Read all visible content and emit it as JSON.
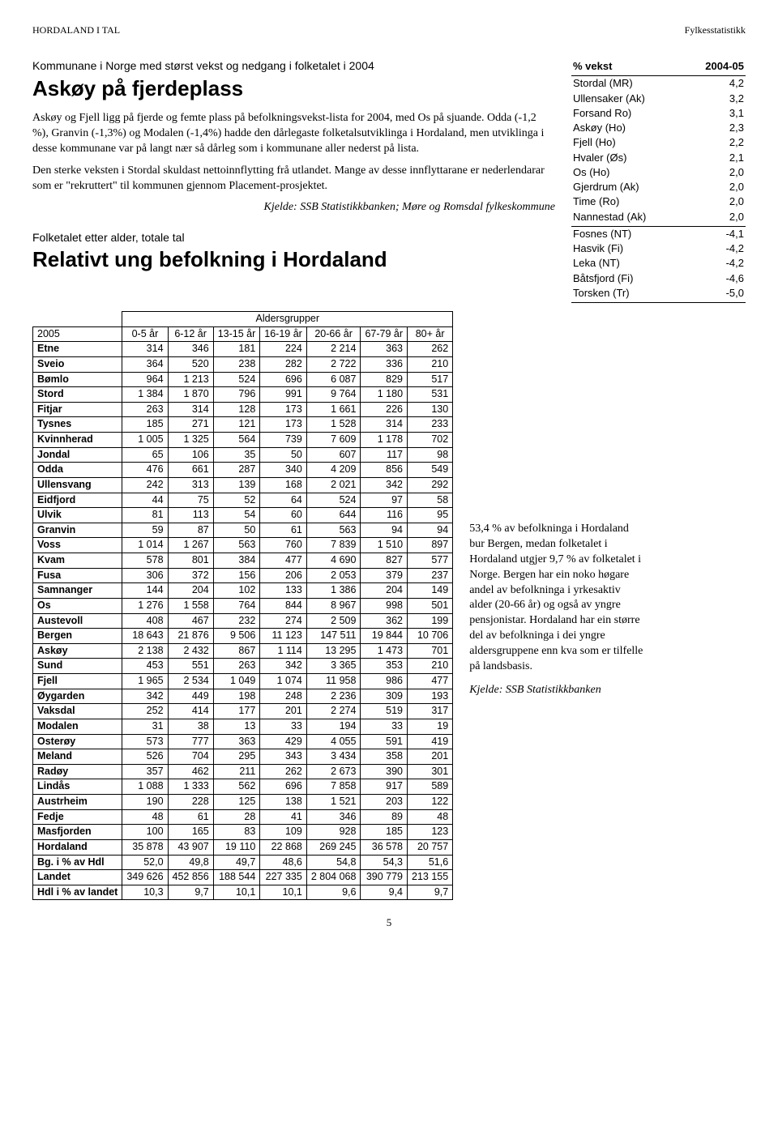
{
  "header": {
    "left": "HORDALAND I TAL",
    "right": "Fylkesstatistikk"
  },
  "article1": {
    "pretitle": "Kommunane i Norge med størst vekst og nedgang i folketalet i 2004",
    "title": "Askøy på fjerdeplass",
    "p1": "Askøy og Fjell ligg på fjerde og femte plass på befolkningsvekst-lista for 2004, med Os på sjuande. Odda (-1,2 %), Granvin (-1,3%) og Modalen (-1,4%) hadde den dårlegaste folketalsutviklinga i Hordaland, men utviklinga i desse kommunane var på langt nær så dårleg som i kommunane aller nederst på lista.",
    "p2": "Den sterke veksten i Stordal skuldast nettoinnflytting frå utlandet. Mange av desse innflyttarane er nederlendarar som er \"rekruttert\" til kommunen gjennom Placement-prosjektet.",
    "source": "Kjelde: SSB Statistikkbanken; Møre og Romsdal fylkeskommune"
  },
  "article2": {
    "pretitle": "Folketalet etter alder, totale tal",
    "title": "Relativt ung befolkning i Hordaland"
  },
  "growth": {
    "col1": "% vekst",
    "col2": "2004-05",
    "top": [
      [
        "Stordal (MR)",
        "4,2"
      ],
      [
        "Ullensaker (Ak)",
        "3,2"
      ],
      [
        "Forsand Ro)",
        "3,1"
      ],
      [
        "Askøy (Ho)",
        "2,3"
      ],
      [
        "Fjell (Ho)",
        "2,2"
      ],
      [
        "Hvaler (Øs)",
        "2,1"
      ],
      [
        "Os (Ho)",
        "2,0"
      ],
      [
        "Gjerdrum (Ak)",
        "2,0"
      ],
      [
        "Time (Ro)",
        "2,0"
      ],
      [
        "Nannestad (Ak)",
        "2,0"
      ]
    ],
    "bottom": [
      [
        "Fosnes (NT)",
        "-4,1"
      ],
      [
        "Hasvik (Fi)",
        "-4,2"
      ],
      [
        "Leka (NT)",
        "-4,2"
      ],
      [
        "Båtsfjord (Fi)",
        "-4,6"
      ],
      [
        "Torsken (Tr)",
        "-5,0"
      ]
    ]
  },
  "big": {
    "year": "2005",
    "super_header": "Aldersgrupper",
    "cols": [
      "0-5 år",
      "6-12 år",
      "13-15 år",
      "16-19 år",
      "20-66 år",
      "67-79 år",
      "80+ år"
    ],
    "rows": [
      [
        "Etne",
        "314",
        "346",
        "181",
        "224",
        "2 214",
        "363",
        "262"
      ],
      [
        "Sveio",
        "364",
        "520",
        "238",
        "282",
        "2 722",
        "336",
        "210"
      ],
      [
        "Bømlo",
        "964",
        "1 213",
        "524",
        "696",
        "6 087",
        "829",
        "517"
      ],
      [
        "Stord",
        "1 384",
        "1 870",
        "796",
        "991",
        "9 764",
        "1 180",
        "531"
      ],
      [
        "Fitjar",
        "263",
        "314",
        "128",
        "173",
        "1 661",
        "226",
        "130"
      ],
      [
        "Tysnes",
        "185",
        "271",
        "121",
        "173",
        "1 528",
        "314",
        "233"
      ],
      [
        "Kvinnherad",
        "1 005",
        "1 325",
        "564",
        "739",
        "7 609",
        "1 178",
        "702"
      ],
      [
        "Jondal",
        "65",
        "106",
        "35",
        "50",
        "607",
        "117",
        "98"
      ],
      [
        "Odda",
        "476",
        "661",
        "287",
        "340",
        "4 209",
        "856",
        "549"
      ],
      [
        "Ullensvang",
        "242",
        "313",
        "139",
        "168",
        "2 021",
        "342",
        "292"
      ],
      [
        "Eidfjord",
        "44",
        "75",
        "52",
        "64",
        "524",
        "97",
        "58"
      ],
      [
        "Ulvik",
        "81",
        "113",
        "54",
        "60",
        "644",
        "116",
        "95"
      ],
      [
        "Granvin",
        "59",
        "87",
        "50",
        "61",
        "563",
        "94",
        "94"
      ],
      [
        "Voss",
        "1 014",
        "1 267",
        "563",
        "760",
        "7 839",
        "1 510",
        "897"
      ],
      [
        "Kvam",
        "578",
        "801",
        "384",
        "477",
        "4 690",
        "827",
        "577"
      ],
      [
        "Fusa",
        "306",
        "372",
        "156",
        "206",
        "2 053",
        "379",
        "237"
      ],
      [
        "Samnanger",
        "144",
        "204",
        "102",
        "133",
        "1 386",
        "204",
        "149"
      ],
      [
        "Os",
        "1 276",
        "1 558",
        "764",
        "844",
        "8 967",
        "998",
        "501"
      ],
      [
        "Austevoll",
        "408",
        "467",
        "232",
        "274",
        "2 509",
        "362",
        "199"
      ],
      [
        "Bergen",
        "18 643",
        "21 876",
        "9 506",
        "11 123",
        "147 511",
        "19 844",
        "10 706"
      ],
      [
        "Askøy",
        "2 138",
        "2 432",
        "867",
        "1 114",
        "13 295",
        "1 473",
        "701"
      ],
      [
        "Sund",
        "453",
        "551",
        "263",
        "342",
        "3 365",
        "353",
        "210"
      ],
      [
        "Fjell",
        "1 965",
        "2 534",
        "1 049",
        "1 074",
        "11 958",
        "986",
        "477"
      ],
      [
        "Øygarden",
        "342",
        "449",
        "198",
        "248",
        "2 236",
        "309",
        "193"
      ],
      [
        "Vaksdal",
        "252",
        "414",
        "177",
        "201",
        "2 274",
        "519",
        "317"
      ],
      [
        "Modalen",
        "31",
        "38",
        "13",
        "33",
        "194",
        "33",
        "19"
      ],
      [
        "Osterøy",
        "573",
        "777",
        "363",
        "429",
        "4 055",
        "591",
        "419"
      ],
      [
        "Meland",
        "526",
        "704",
        "295",
        "343",
        "3 434",
        "358",
        "201"
      ],
      [
        "Radøy",
        "357",
        "462",
        "211",
        "262",
        "2 673",
        "390",
        "301"
      ],
      [
        "Lindås",
        "1 088",
        "1 333",
        "562",
        "696",
        "7 858",
        "917",
        "589"
      ],
      [
        "Austrheim",
        "190",
        "228",
        "125",
        "138",
        "1 521",
        "203",
        "122"
      ],
      [
        "Fedje",
        "48",
        "61",
        "28",
        "41",
        "346",
        "89",
        "48"
      ],
      [
        "Masfjorden",
        "100",
        "165",
        "83",
        "109",
        "928",
        "185",
        "123"
      ],
      [
        "Hordaland",
        "35 878",
        "43 907",
        "19 110",
        "22 868",
        "269 245",
        "36 578",
        "20 757"
      ],
      [
        "Bg. i % av Hdl",
        "52,0",
        "49,8",
        "49,7",
        "48,6",
        "54,8",
        "54,3",
        "51,6"
      ],
      [
        "Landet",
        "349 626",
        "452 856",
        "188 544",
        "227 335",
        "2 804 068",
        "390 779",
        "213 155"
      ],
      [
        "Hdl i % av landet",
        "10,3",
        "9,7",
        "10,1",
        "10,1",
        "9,6",
        "9,4",
        "9,7"
      ]
    ]
  },
  "side": {
    "para": "53,4 % av befolkninga i Hordaland bur Bergen, medan folketalet i Hordaland utgjer 9,7 % av folketalet i Norge. Bergen har ein noko høgare andel av befolkninga i yrkesaktiv alder (20-66 år) og også av yngre pensjonistar. Hordaland har ein større del av befolkninga i dei yngre aldersgruppene enn kva som er tilfelle på landsbasis.",
    "source": "Kjelde: SSB Statistikkbanken"
  },
  "page": "5"
}
